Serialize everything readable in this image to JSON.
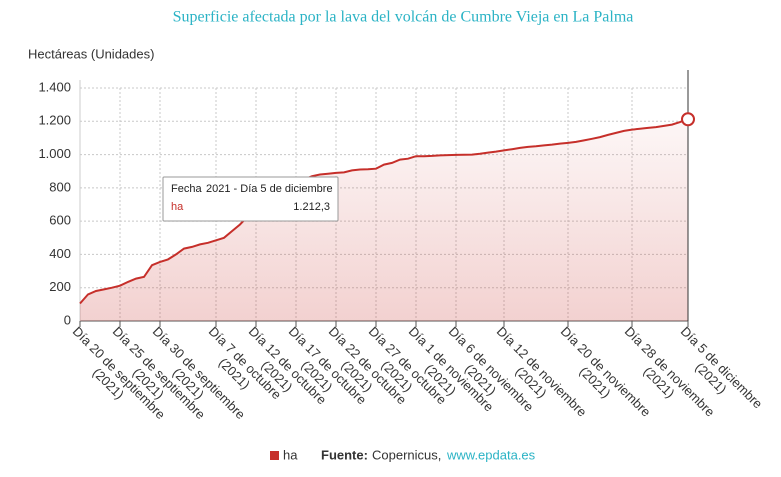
{
  "chart_data": {
    "type": "area",
    "title": "Superficie afectada por la lava del volcán de Cumbre Vieja en La Palma",
    "y_label": "Hectáreas (Unidades)",
    "categories": [
      "Día 20 de septiembre (2021)",
      null,
      null,
      null,
      null,
      "Día 25 de septiembre (2021)",
      null,
      null,
      null,
      null,
      "Día 30 de septiembre (2021)",
      null,
      null,
      null,
      null,
      null,
      null,
      "Día 7 de octubre (2021)",
      null,
      null,
      null,
      null,
      "Día 12 de octubre (2021)",
      null,
      null,
      null,
      null,
      "Día 17 de octubre (2021)",
      null,
      null,
      null,
      null,
      "Día 22 de octubre (2021)",
      null,
      null,
      null,
      null,
      "Día 27 de octubre (2021)",
      null,
      null,
      null,
      null,
      "Día 1 de noviembre (2021)",
      null,
      null,
      null,
      null,
      "Día 6 de noviembre (2021)",
      null,
      null,
      null,
      null,
      null,
      "Día 12 de noviembre (2021)",
      null,
      null,
      null,
      null,
      null,
      null,
      null,
      "Día 20 de noviembre (2021)",
      null,
      null,
      null,
      null,
      null,
      null,
      null,
      "Día 28 de noviembre (2021)",
      null,
      null,
      null,
      null,
      null,
      null,
      "Día 5 de diciembre (2021)"
    ],
    "series": [
      {
        "name": "ha",
        "color": "#c62f2a",
        "values": [
          105,
          160,
          180,
          190,
          200,
          212,
          235,
          255,
          265,
          335,
          355,
          370,
          400,
          435,
          445,
          460,
          470,
          485,
          500,
          540,
          580,
          630,
          660,
          690,
          720,
          760,
          800,
          830,
          850,
          870,
          880,
          885,
          890,
          893,
          905,
          910,
          912,
          915,
          940,
          950,
          970,
          975,
          990,
          990,
          992,
          995,
          997,
          998,
          999,
          1000,
          1005,
          1012,
          1018,
          1025,
          1032,
          1040,
          1046,
          1050,
          1055,
          1060,
          1066,
          1070,
          1076,
          1085,
          1095,
          1105,
          1118,
          1130,
          1142,
          1150,
          1155,
          1160,
          1165,
          1172,
          1180,
          1195,
          1212.3
        ]
      }
    ],
    "ylim": [
      0,
      1400
    ],
    "yticks": [
      0,
      200,
      400,
      600,
      800,
      {
        "value": 1000,
        "label": "1.000"
      },
      {
        "value": 1200,
        "label": "1.200"
      },
      {
        "value": 1400,
        "label": "1.400"
      }
    ],
    "grid": true,
    "tooltip": {
      "label": "Fecha",
      "date": "2021 - Día 5 de diciembre",
      "series": "ha",
      "value": "1.212,3"
    },
    "source": {
      "label": "Fuente:",
      "name": "Copernicus,",
      "link": "www.epdata.es"
    }
  }
}
